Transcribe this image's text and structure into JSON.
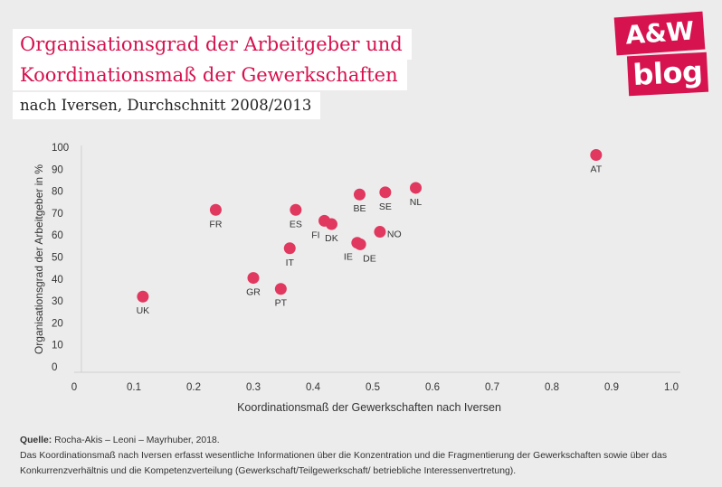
{
  "header": {
    "title_line1": "Organisationsgrad der Arbeitgeber und",
    "title_line2": "Koordinationsmaß der Gewerkschaften",
    "subtitle": "nach Iversen, Durchschnitt 2008/2013"
  },
  "logo": {
    "line1": "A&W",
    "line2": "blog"
  },
  "colors": {
    "accent": "#d6124f",
    "point": "#e0385f",
    "background": "#ececec",
    "axis": "#cfcfcf",
    "text": "#333333"
  },
  "chart_data": {
    "type": "scatter",
    "xlabel": "Koordinationsmaß der Gewerkschaften nach Iversen",
    "ylabel": "Organisationsgrad der Arbeitgeber in %",
    "xlim": [
      0,
      1.0
    ],
    "ylim": [
      0,
      100
    ],
    "x_ticks": [
      "0",
      "0.1",
      "0.2",
      "0.3",
      "0.4",
      "0.5",
      "0.6",
      "0.7",
      "0.8",
      "0.9",
      "1.0"
    ],
    "y_ticks": [
      "0",
      "10",
      "20",
      "30",
      "40",
      "50",
      "60",
      "70",
      "80",
      "90",
      "100"
    ],
    "grid": false,
    "points": [
      {
        "label": "UK",
        "x": 0.115,
        "y": 32,
        "label_pos": "below"
      },
      {
        "label": "FR",
        "x": 0.237,
        "y": 71.5,
        "label_pos": "below"
      },
      {
        "label": "GR",
        "x": 0.3,
        "y": 40.5,
        "label_pos": "below"
      },
      {
        "label": "PT",
        "x": 0.346,
        "y": 35.5,
        "label_pos": "below"
      },
      {
        "label": "IT",
        "x": 0.361,
        "y": 54,
        "label_pos": "below"
      },
      {
        "label": "ES",
        "x": 0.371,
        "y": 71.5,
        "label_pos": "below"
      },
      {
        "label": "FI",
        "x": 0.419,
        "y": 66.5,
        "label_pos": "below-left"
      },
      {
        "label": "DK",
        "x": 0.431,
        "y": 65,
        "label_pos": "below"
      },
      {
        "label": "IE",
        "x": 0.474,
        "y": 56.5,
        "label_pos": "below-left"
      },
      {
        "label": "DE",
        "x": 0.479,
        "y": 55.8,
        "label_pos": "below-right"
      },
      {
        "label": "BE",
        "x": 0.478,
        "y": 78.5,
        "label_pos": "below"
      },
      {
        "label": "NO",
        "x": 0.512,
        "y": 61.5,
        "label_pos": "right"
      },
      {
        "label": "SE",
        "x": 0.521,
        "y": 79.5,
        "label_pos": "below"
      },
      {
        "label": "NL",
        "x": 0.572,
        "y": 81.5,
        "label_pos": "below"
      },
      {
        "label": "AT",
        "x": 0.874,
        "y": 96.5,
        "label_pos": "below"
      }
    ]
  },
  "footer": {
    "source_label": "Quelle:",
    "source_text": " Rocha-Akis – Leoni – Mayrhuber, 2018.",
    "note": "Das Koordinationsmaß nach Iversen erfasst wesentliche Informationen über die Konzentration und die Fragmentierung der Gewerkschaften sowie über das Konkurrenzverhältnis und die Kompetenzverteilung (Gewerkschaft/Teilgewerkschaft/ betriebliche Interessenvertretung)."
  }
}
